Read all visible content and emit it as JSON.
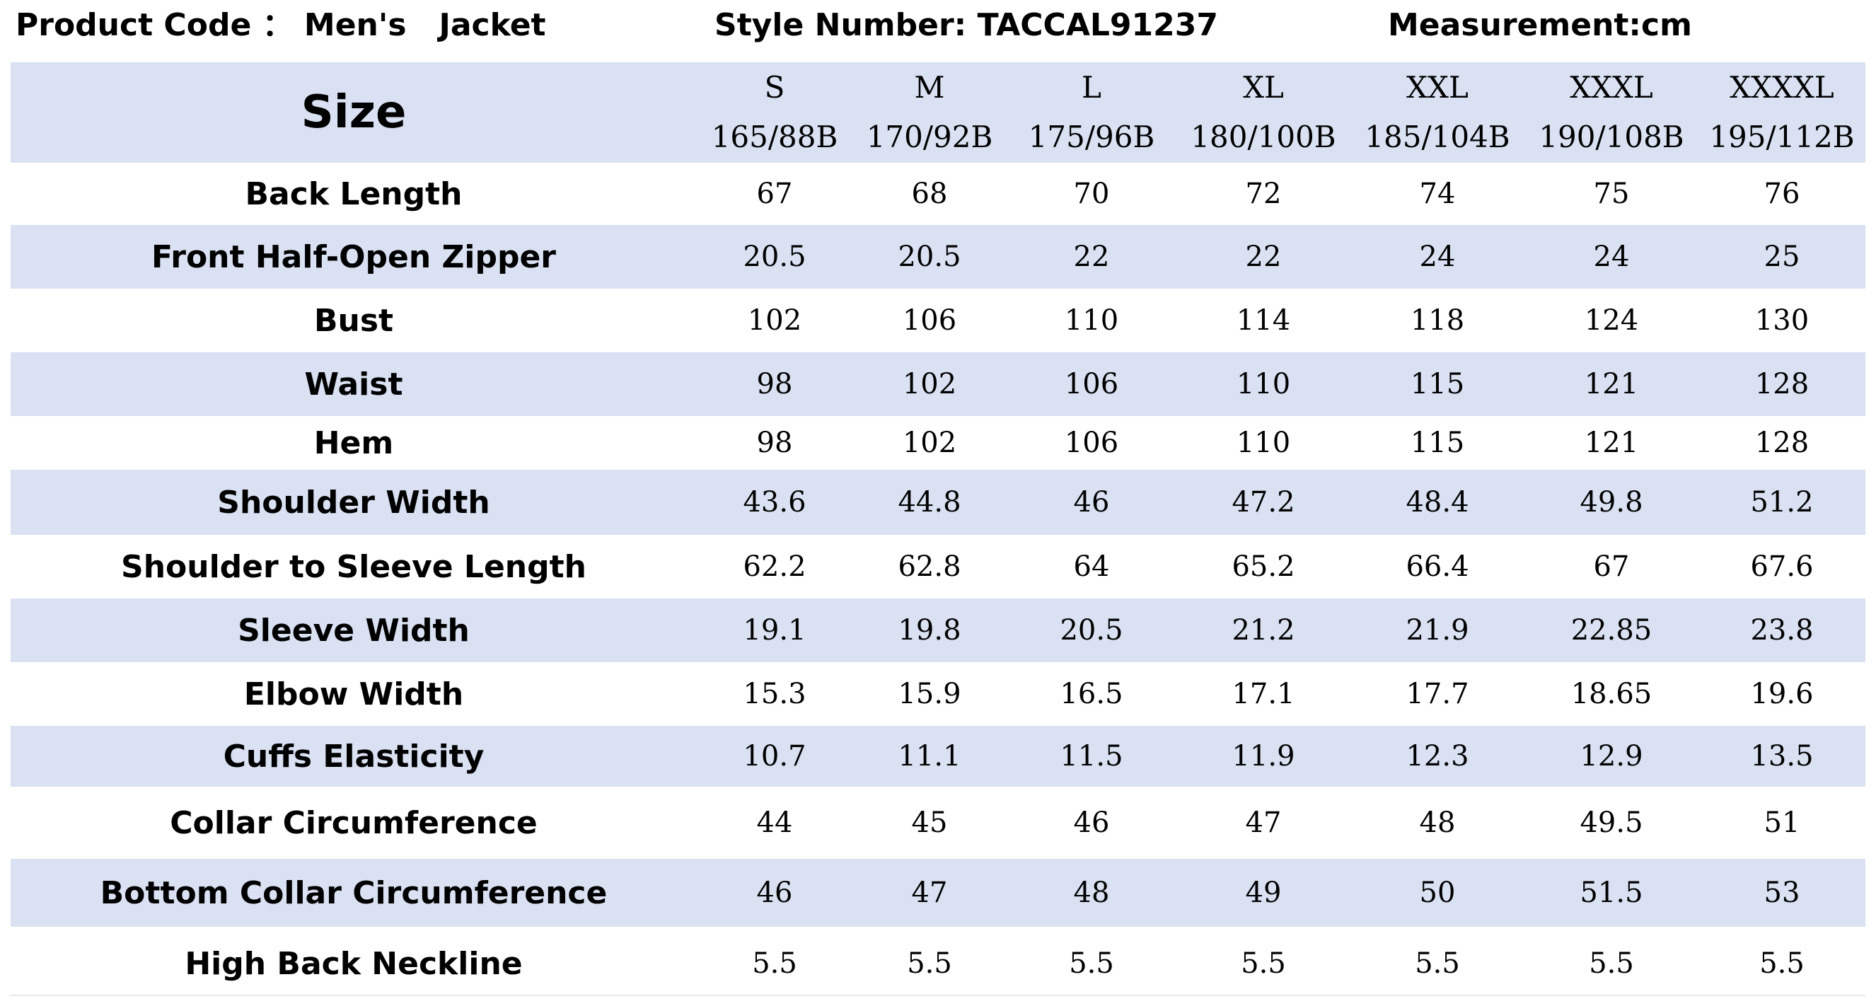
{
  "header": {
    "product_code": "Product Code ： Men's   Jacket",
    "style_number": "Style Number: TACCAL91237",
    "measurement": "Measurement:cm"
  },
  "table": {
    "size_label": "Size",
    "sizes": [
      {
        "code": "S",
        "spec": "165/88B"
      },
      {
        "code": "M",
        "spec": "170/92B"
      },
      {
        "code": "L",
        "spec": "175/96B"
      },
      {
        "code": "XL",
        "spec": "180/100B"
      },
      {
        "code": "XXL",
        "spec": "185/104B"
      },
      {
        "code": "XXXL",
        "spec": "190/108B"
      },
      {
        "code": "XXXXL",
        "spec": "195/112B"
      }
    ],
    "rows": [
      {
        "label": "Back Length",
        "values": [
          "67",
          "68",
          "70",
          "72",
          "74",
          "75",
          "76"
        ]
      },
      {
        "label": "Front Half-Open Zipper",
        "values": [
          "20.5",
          "20.5",
          "22",
          "22",
          "24",
          "24",
          "25"
        ]
      },
      {
        "label": "Bust",
        "values": [
          "102",
          "106",
          "110",
          "114",
          "118",
          "124",
          "130"
        ]
      },
      {
        "label": "Waist",
        "values": [
          "98",
          "102",
          "106",
          "110",
          "115",
          "121",
          "128"
        ]
      },
      {
        "label": "Hem",
        "values": [
          "98",
          "102",
          "106",
          "110",
          "115",
          "121",
          "128"
        ]
      },
      {
        "label": "Shoulder Width",
        "values": [
          "43.6",
          "44.8",
          "46",
          "47.2",
          "48.4",
          "49.8",
          "51.2"
        ]
      },
      {
        "label": "Shoulder to Sleeve Length",
        "values": [
          "62.2",
          "62.8",
          "64",
          "65.2",
          "66.4",
          "67",
          "67.6"
        ]
      },
      {
        "label": "Sleeve Width",
        "values": [
          "19.1",
          "19.8",
          "20.5",
          "21.2",
          "21.9",
          "22.85",
          "23.8"
        ]
      },
      {
        "label": "Elbow Width",
        "values": [
          "15.3",
          "15.9",
          "16.5",
          "17.1",
          "17.7",
          "18.65",
          "19.6"
        ]
      },
      {
        "label": "Cuffs Elasticity",
        "values": [
          "10.7",
          "11.1",
          "11.5",
          "11.9",
          "12.3",
          "12.9",
          "13.5"
        ]
      },
      {
        "label": "Collar Circumference",
        "values": [
          "44",
          "45",
          "46",
          "47",
          "48",
          "49.5",
          "51"
        ]
      },
      {
        "label": "Bottom Collar Circumference",
        "values": [
          "46",
          "47",
          "48",
          "49",
          "50",
          "51.5",
          "53"
        ]
      },
      {
        "label": "High Back Neckline",
        "values": [
          "5.5",
          "5.5",
          "5.5",
          "5.5",
          "5.5",
          "5.5",
          "5.5"
        ]
      }
    ]
  },
  "colors": {
    "shaded_row": "#d9e1f2",
    "plain_row": "#ffffff"
  }
}
